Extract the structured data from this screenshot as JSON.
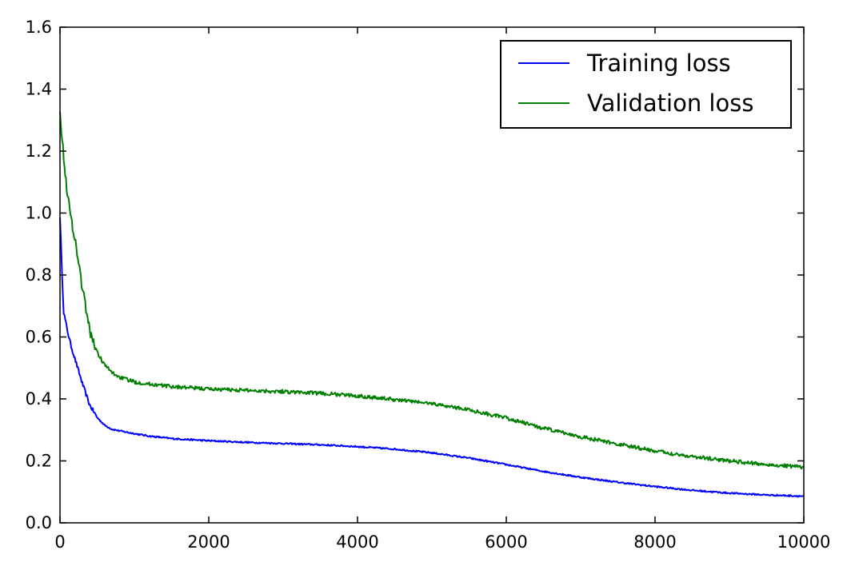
{
  "chart_data": {
    "type": "line",
    "title": "",
    "xlabel": "",
    "ylabel": "",
    "xlim": [
      0,
      10000
    ],
    "ylim": [
      0.0,
      1.6
    ],
    "xticks": [
      0,
      2000,
      4000,
      6000,
      8000,
      10000
    ],
    "xtick_labels": [
      "0",
      "2000",
      "4000",
      "6000",
      "8000",
      "10000"
    ],
    "yticks": [
      0.0,
      0.2,
      0.4,
      0.6,
      0.8,
      1.0,
      1.2,
      1.4,
      1.6
    ],
    "ytick_labels": [
      "0.0",
      "0.2",
      "0.4",
      "0.6",
      "0.8",
      "1.0",
      "1.2",
      "1.4",
      "1.6"
    ],
    "grid": false,
    "legend_position": "top-right",
    "series": [
      {
        "name": "Training loss",
        "color": "#0000ff",
        "x": [
          0,
          25,
          50,
          100,
          150,
          200,
          300,
          400,
          500,
          600,
          700,
          800,
          1000,
          1200,
          1500,
          2000,
          2500,
          3000,
          3500,
          4000,
          4500,
          5000,
          5500,
          6000,
          6500,
          7000,
          7500,
          8000,
          8500,
          9000,
          9500,
          10000
        ],
        "y": [
          0.99,
          0.82,
          0.68,
          0.62,
          0.57,
          0.53,
          0.45,
          0.38,
          0.34,
          0.315,
          0.302,
          0.297,
          0.288,
          0.28,
          0.272,
          0.265,
          0.26,
          0.256,
          0.252,
          0.246,
          0.238,
          0.226,
          0.209,
          0.188,
          0.166,
          0.147,
          0.131,
          0.117,
          0.105,
          0.096,
          0.09,
          0.086
        ]
      },
      {
        "name": "Validation loss",
        "color": "#007f00",
        "x": [
          0,
          25,
          50,
          100,
          150,
          200,
          300,
          400,
          500,
          600,
          700,
          800,
          1000,
          1200,
          1500,
          2000,
          2500,
          3000,
          3500,
          4000,
          4500,
          5000,
          5500,
          6000,
          6500,
          7000,
          7500,
          8000,
          8500,
          9000,
          9500,
          10000
        ],
        "y": [
          1.34,
          1.25,
          1.18,
          1.06,
          0.98,
          0.92,
          0.76,
          0.62,
          0.55,
          0.51,
          0.485,
          0.47,
          0.455,
          0.448,
          0.44,
          0.432,
          0.428,
          0.424,
          0.418,
          0.41,
          0.398,
          0.385,
          0.365,
          0.338,
          0.305,
          0.278,
          0.254,
          0.232,
          0.214,
          0.2,
          0.188,
          0.18
        ]
      }
    ]
  }
}
